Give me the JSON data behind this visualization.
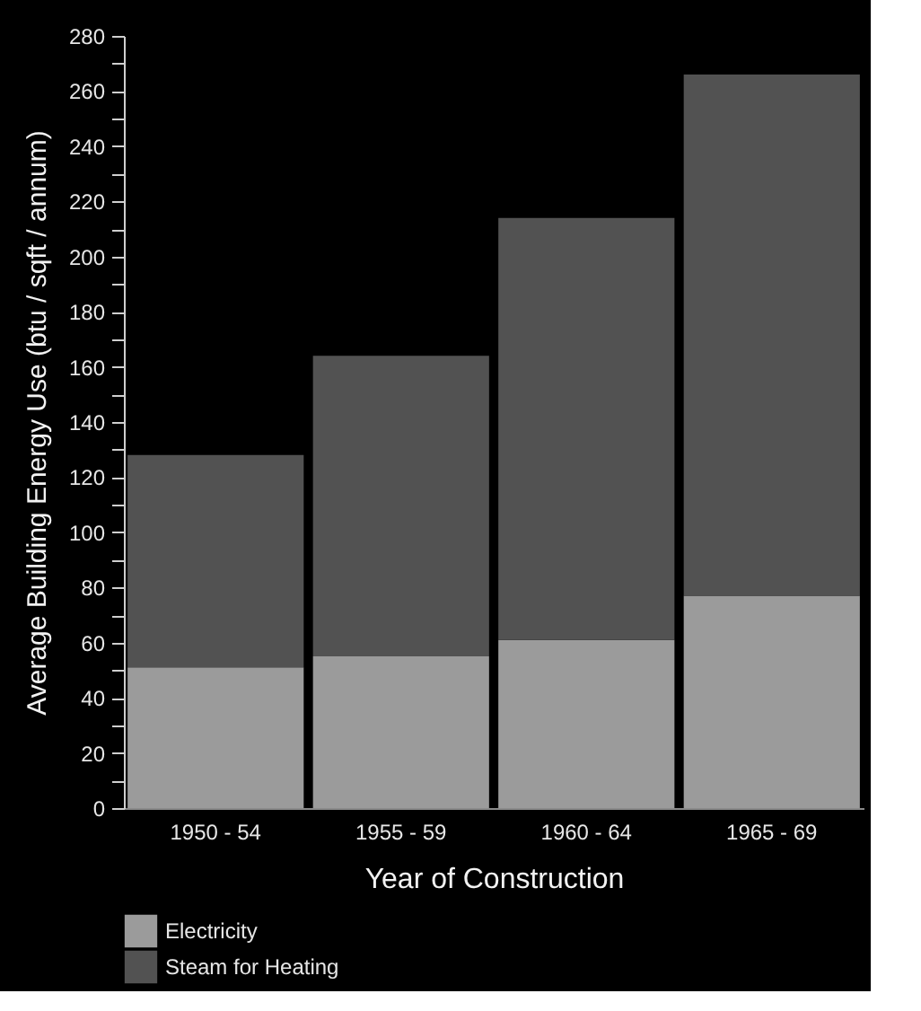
{
  "chart_data": {
    "type": "bar",
    "stacked": true,
    "xlabel": "Year of Construction",
    "ylabel": "Average Building Energy Use (btu / sqft / annum)",
    "categories": [
      "1950 - 54",
      "1955 - 59",
      "1960 - 64",
      "1965 - 69"
    ],
    "series": [
      {
        "name": "Electricity",
        "color": "#9b9b9b",
        "values": [
          51,
          55,
          61,
          77
        ]
      },
      {
        "name": "Steam for Heating",
        "color": "#525252",
        "values": [
          77,
          109,
          153,
          189
        ]
      }
    ],
    "ylim": [
      0,
      280
    ],
    "yticks": [
      0,
      {
        "value": 10,
        "label": null
      },
      20,
      {
        "value": 30,
        "label": null
      },
      40,
      {
        "value": 50,
        "label": null
      },
      60,
      {
        "value": 70,
        "label": null
      },
      80,
      {
        "value": 90,
        "label": null
      },
      100,
      {
        "value": 110,
        "label": null
      },
      120,
      {
        "value": 130,
        "label": null
      },
      140,
      {
        "value": 150,
        "label": null
      },
      160,
      {
        "value": 170,
        "label": null
      },
      180,
      {
        "value": 190,
        "label": null
      },
      200,
      {
        "value": 210,
        "label": null
      },
      220,
      {
        "value": 230,
        "label": null
      },
      240,
      {
        "value": 250,
        "label": null
      },
      260,
      {
        "value": 270,
        "label": null
      },
      280
    ],
    "grid": false,
    "legend": "bottom left"
  }
}
